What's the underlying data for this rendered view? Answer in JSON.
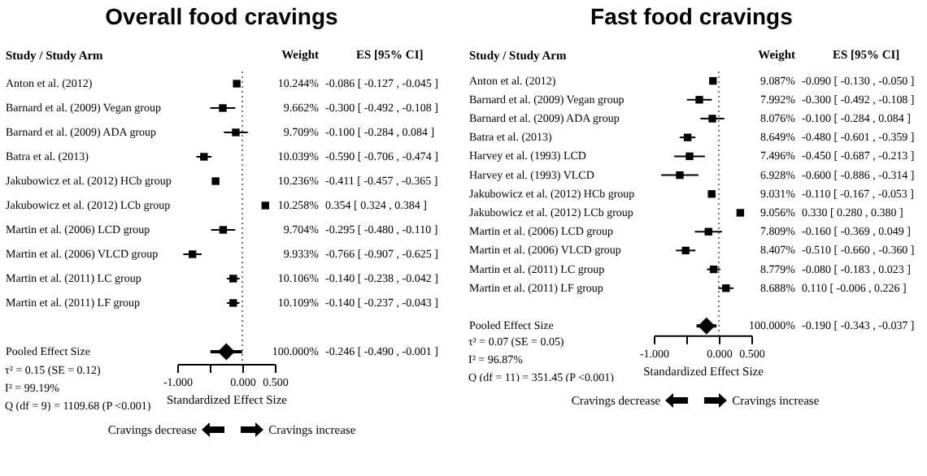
{
  "chart_data": [
    {
      "type": "scatter",
      "orientation": "horizontal",
      "title": "Overall food cravings",
      "ylabel": "Study / Study Arm",
      "xlabel": "Standardized Effect Size",
      "categories": [
        "Anton et al. (2012)",
        "Barnard et al. (2009) Vegan group",
        "Barnard et al. (2009) ADA group",
        "Batra et al. (2013)",
        "Jakubowicz et al. (2012) HCb group",
        "Jakubowicz et al. (2012) LCb group",
        "Martin et al. (2006) LCD group",
        "Martin et al. (2006) VLCD group",
        "Martin et al. (2011) LC group",
        "Martin et al. (2011) LF group",
        "Pooled Effect Size"
      ],
      "xlim": [
        -1,
        0.5
      ],
      "xticks": [
        {
          "value": -1,
          "label": "-1.000"
        },
        {
          "value": -0.5,
          "label": null
        },
        {
          "value": 0,
          "label": "0.000"
        },
        {
          "value": 0.5,
          "label": "0.500"
        }
      ],
      "marker": "square",
      "series": [
        {
          "color": "#000000",
          "values": [
            -0.086,
            -0.3,
            -0.1,
            -0.59,
            -0.411,
            0.354,
            -0.295,
            -0.766,
            -0.14,
            -0.14,
            null
          ],
          "errors": [
            [
              -0.127,
              -0.045
            ],
            [
              -0.492,
              -0.108
            ],
            [
              -0.284,
              0.084
            ],
            [
              -0.706,
              -0.474
            ],
            [
              -0.457,
              -0.365
            ],
            [
              0.324,
              0.384
            ],
            [
              -0.48,
              -0.11
            ],
            [
              -0.907,
              -0.625
            ],
            [
              -0.238,
              -0.042
            ],
            [
              -0.237,
              -0.043
            ],
            null
          ]
        },
        {
          "color": "#000000",
          "marker": "diamond",
          "values": [
            null,
            null,
            null,
            null,
            null,
            null,
            null,
            null,
            null,
            null,
            -0.246
          ],
          "errors": [
            null,
            null,
            null,
            null,
            null,
            null,
            null,
            null,
            null,
            null,
            [
              -0.49,
              -0.001
            ]
          ]
        }
      ],
      "ref_lines": [
        {
          "axis": "x",
          "value": 0,
          "line_style": "dotted",
          "color": "#555555"
        }
      ],
      "annotations": [
        "Weight",
        "ES [95% CI]",
        "τ² = 0.15 (SE = 0.12)",
        "I² = 99.19%",
        "Q (df = 9) = 1109.68 (P <0.001)",
        "Cravings decrease",
        "Cravings increase",
        "10.244%",
        "-0.086 [ -0.127 , -0.045 ]",
        "9.662%",
        "-0.300 [ -0.492 , -0.108 ]",
        "9.709%",
        "-0.100 [ -0.284 ,  0.084 ]",
        "10.039%",
        "-0.590 [ -0.706 , -0.474 ]",
        "10.236%",
        "-0.411 [ -0.457 , -0.365 ]",
        "10.258%",
        "0.354 [  0.324 ,  0.384 ]",
        "9.704%",
        "-0.295 [ -0.480 , -0.110 ]",
        "9.933%",
        "-0.766 [ -0.907 , -0.625 ]",
        "10.106%",
        "-0.140 [ -0.238 , -0.042 ]",
        "10.109%",
        "-0.140 [ -0.237 , -0.043 ]",
        "100.000%",
        "-0.246 [ -0.490 , -0.001 ]"
      ]
    },
    {
      "type": "scatter",
      "orientation": "horizontal",
      "title": "Fast food cravings",
      "ylabel": "Study / Study Arm",
      "xlabel": "Standardized Effect Size",
      "categories": [
        "Anton et al. (2012)",
        "Barnard et al. (2009) Vegan group",
        "Barnard et al. (2009) ADA group",
        "Batra et al. (2013)",
        "Harvey et al. (1993) LCD",
        "Harvey et al. (1993) VLCD",
        "Jakubowicz et al. (2012) HCb group",
        "Jakubowicz et al. (2012) LCb group",
        "Martin et al. (2006) LCD group",
        "Martin et al. (2006) VLCD group",
        "Martin et al. (2011) LC group",
        "Martin et al. (2011) LF group",
        "Pooled Effect Size"
      ],
      "xlim": [
        -1,
        0.5
      ],
      "xticks": [
        {
          "value": -1,
          "label": "-1.000"
        },
        {
          "value": -0.5,
          "label": null
        },
        {
          "value": 0,
          "label": "0.000"
        },
        {
          "value": 0.5,
          "label": "0.500"
        }
      ],
      "marker": "square",
      "series": [
        {
          "color": "#000000",
          "values": [
            -0.09,
            -0.3,
            -0.1,
            -0.48,
            -0.45,
            -0.6,
            -0.11,
            0.33,
            -0.16,
            -0.51,
            -0.08,
            0.11,
            null
          ],
          "errors": [
            [
              -0.13,
              -0.05
            ],
            [
              -0.492,
              -0.108
            ],
            [
              -0.284,
              0.084
            ],
            [
              -0.601,
              -0.359
            ],
            [
              -0.687,
              -0.213
            ],
            [
              -0.886,
              -0.314
            ],
            [
              -0.167,
              -0.053
            ],
            [
              0.28,
              0.38
            ],
            [
              -0.369,
              0.049
            ],
            [
              -0.66,
              -0.36
            ],
            [
              -0.183,
              0.023
            ],
            [
              -0.006,
              0.226
            ],
            null
          ]
        },
        {
          "color": "#000000",
          "marker": "diamond",
          "values": [
            null,
            null,
            null,
            null,
            null,
            null,
            null,
            null,
            null,
            null,
            null,
            null,
            -0.19
          ],
          "errors": [
            null,
            null,
            null,
            null,
            null,
            null,
            null,
            null,
            null,
            null,
            null,
            null,
            [
              -0.343,
              -0.037
            ]
          ]
        }
      ],
      "ref_lines": [
        {
          "axis": "x",
          "value": 0,
          "line_style": "dotted",
          "color": "#555555"
        }
      ],
      "annotations": [
        "Weight",
        "ES [95% CI]",
        "τ² = 0.07 (SE = 0.05)",
        "I² = 96.87%",
        "Q (df = 11) = 351.45 (P <0.001)",
        "Cravings decrease",
        "Cravings increase",
        "9.087%",
        "-0.090 [ -0.130 , -0.050 ]",
        "7.992%",
        "-0.300 [ -0.492 , -0.108 ]",
        "8.076%",
        "-0.100 [ -0.284 ,  0.084 ]",
        "8.649%",
        "-0.480 [ -0.601 , -0.359 ]",
        "7.496%",
        "-0.450 [ -0.687 , -0.213 ]",
        "6.928%",
        "-0.600 [ -0.886 , -0.314 ]",
        "9.031%",
        "-0.110 [ -0.167 , -0.053 ]",
        "9.056%",
        "0.330 [  0.280 ,  0.380 ]",
        "7.809%",
        "-0.160 [ -0.369 ,  0.049 ]",
        "8.407%",
        "-0.510 [ -0.660 , -0.360 ]",
        "8.779%",
        "-0.080 [ -0.183 ,  0.023 ]",
        "8.688%",
        "0.110 [ -0.006 ,  0.226 ]",
        "100.000%",
        "-0.190 [ -0.343 , -0.037 ]"
      ]
    }
  ]
}
